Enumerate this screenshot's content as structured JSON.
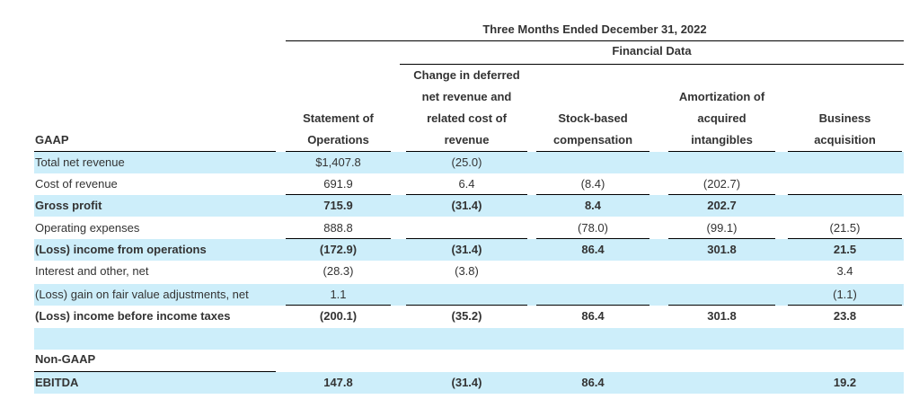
{
  "header": {
    "period": "Three Months Ended December 31, 2022",
    "group": "Financial Data",
    "row_label": "GAAP",
    "columns": [
      [
        "Statement of",
        "Operations"
      ],
      [
        "Change in deferred",
        "net revenue and",
        "related cost of",
        "revenue"
      ],
      [
        "Stock-based",
        "compensation"
      ],
      [
        "Amortization of",
        "acquired",
        "intangibles"
      ],
      [
        "Business",
        "acquisition"
      ]
    ]
  },
  "rows": [
    {
      "label": "Total net revenue",
      "bold": false,
      "values": [
        "$1,407.8",
        "(25.0)",
        "",
        "",
        ""
      ]
    },
    {
      "label": "Cost of revenue",
      "bold": false,
      "values": [
        "691.9",
        "6.4",
        "(8.4)",
        "(202.7)",
        ""
      ]
    },
    {
      "label": "Gross profit",
      "bold": true,
      "values": [
        "715.9",
        "(31.4)",
        "8.4",
        "202.7",
        ""
      ]
    },
    {
      "label": "Operating expenses",
      "bold": false,
      "values": [
        "888.8",
        "",
        "(78.0)",
        "(99.1)",
        "(21.5)"
      ]
    },
    {
      "label": "(Loss) income from operations",
      "bold": true,
      "values": [
        "(172.9)",
        "(31.4)",
        "86.4",
        "301.8",
        "21.5"
      ]
    },
    {
      "label": "Interest and other, net",
      "bold": false,
      "values": [
        "(28.3)",
        "(3.8)",
        "",
        "",
        "3.4"
      ]
    },
    {
      "label": "(Loss) gain on fair value adjustments, net",
      "bold": false,
      "values": [
        "1.1",
        "",
        "",
        "",
        "(1.1)"
      ]
    },
    {
      "label": "(Loss) income before income taxes",
      "bold": true,
      "values": [
        "(200.1)",
        "(35.2)",
        "86.4",
        "301.8",
        "23.8"
      ]
    }
  ],
  "non_gaap": {
    "section_label": "Non-GAAP",
    "rows": [
      {
        "label": "EBITDA",
        "bold": true,
        "values": [
          "147.8",
          "(31.4)",
          "86.4",
          "",
          "19.2"
        ]
      }
    ]
  }
}
